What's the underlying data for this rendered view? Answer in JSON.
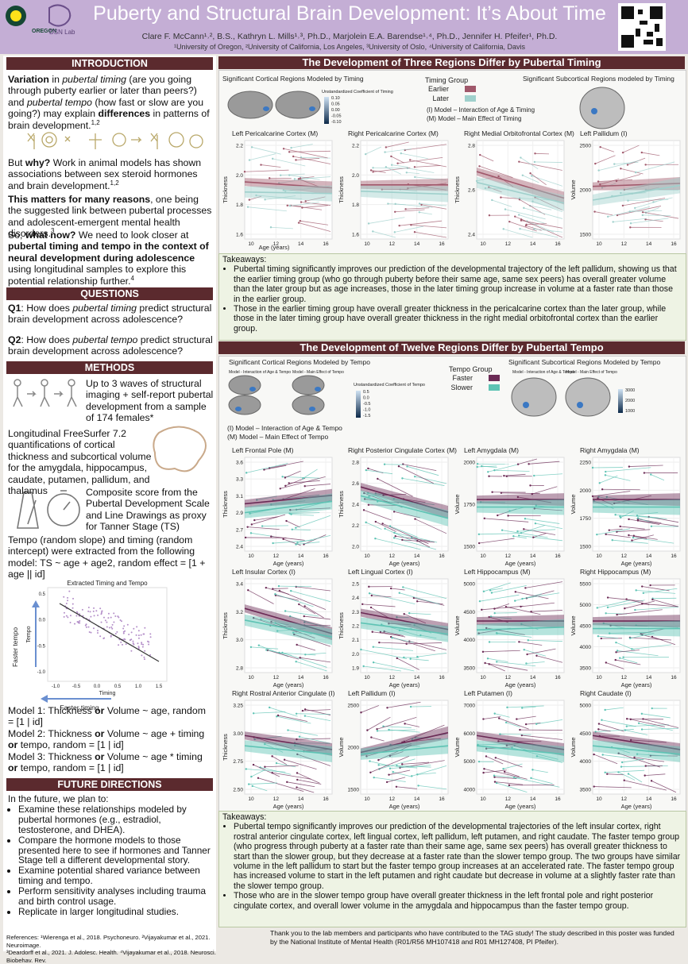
{
  "header": {
    "title": "Puberty and Structural Brain Development: It’s About Time",
    "authors": "Clare F. McCann¹˒², B.S., Kathryn L. Mills¹˒³, Ph.D., Marjolein E.A. Barendse¹˒⁴, Ph.D., Jennifer H. Pfeifer¹, Ph.D.",
    "affiliations": "¹University of Oregon, ²University of California, Los Angeles, ³University of Oslo, ⁴University of California, Davis",
    "logos": [
      "OREGON",
      "DSN Lab"
    ]
  },
  "intro": {
    "heading": "INTRODUCTION",
    "paragraphs": [
      [
        "Variation",
        " in ",
        "pubertal timing",
        " (are you going through puberty earlier or later than peers?) and ",
        "pubertal tempo",
        " (how fast or slow are you going?) may explain ",
        "differences",
        " in patterns of brain development.",
        "1,2"
      ],
      [
        "But ",
        "why?",
        " Work in animal models has shown associations between sex steroid hormones and brain development.",
        "1,2"
      ],
      [
        "This matters for many reasons",
        ", one being the suggested link between pubertal processes and adolescent-emergent mental health disorders.",
        "3"
      ],
      [
        "So, ",
        "what now?",
        " We need to look closer at ",
        "pubertal timing and tempo in the context of neural development during adolescence",
        " using longitudinal samples to explore this potential relationship further.",
        "4"
      ]
    ]
  },
  "questions": {
    "heading": "QUESTIONS",
    "q1": [
      "Q1",
      ": How does ",
      "pubertal timing",
      " predict structural brain development across adolescence?"
    ],
    "q2": [
      "Q2",
      ": How does ",
      "pubertal tempo",
      " predict structural brain development across adolescence?"
    ]
  },
  "methods": {
    "heading": "METHODS",
    "items": [
      "Up to 3 waves of structural imaging + self-report pubertal development from a sample of 174 females*",
      "Longitudinal FreeSurfer 7.2 quantifications of cortical thickness and subcortical volume for the amygdala, hippocampus, caudate, putamen, pallidum, and thalamus",
      "Composite score from the Pubertal Development Scale and Line Drawings as proxy for Tanner Stage (TS)",
      "Tempo (random slope) and timing (random intercept) were extracted from the following model: TS ~ age + age2, random effect = [1 + age || id]"
    ],
    "figure": {
      "title": "Extracted Timing and Tempo",
      "ylabel": "Tempo",
      "xlabel": "Timing",
      "yticks": [
        "-1.0",
        "-0.5",
        "0.0",
        "0.5"
      ],
      "xticks": [
        "-1.0",
        "-0.5",
        "0.0",
        "0.5",
        "1.0",
        "1.5"
      ],
      "y_arrow": "Faster tempo",
      "x_arrow": "Faster timing"
    },
    "models": [
      [
        "Model 1: Thickness ",
        "or",
        " Volume ~ age, random = [1 | id]"
      ],
      [
        "Model 2: Thickness ",
        "or",
        " Volume ~ age + timing ",
        "or",
        " tempo, random = [1 | id]"
      ],
      [
        "Model 3: Thickness ",
        "or",
        " Volume ~ age * timing ",
        "or",
        " tempo, random = [1 | id]"
      ]
    ]
  },
  "future": {
    "heading": "FUTURE DIRECTIONS",
    "intro": "In the future, we plan to:",
    "items": [
      "Examine these relationships modeled by pubertal hormones (e.g., estradiol, testosterone, and DHEA).",
      "Compare the hormone models to those presented here to see if hormones and Tanner Stage tell a different developmental story.",
      "Examine potential shared variance between timing and tempo.",
      "Perform sensitivity analyses including trauma and birth control usage.",
      "Replicate in larger longitudinal studies."
    ]
  },
  "references": [
    "References: ¹Wierenga et al., 2018. Psychoneuro. ²Vijayakumar et al., 2021. Neuroimage.",
    "³Deardorff et al., 2021. J. Adolesc. Health. ⁴Vijayakumar et al., 2018. Neurosci. Biobehav. Rev."
  ],
  "sections": [
    {
      "heading": "The Development of Three Regions Differ by Pubertal Timing",
      "cortical_title": "Significant Cortical Regions Modeled by Timing",
      "colorbar_title": "Unstandardized Coefficient of Timing",
      "colorbar_ticks": [
        "0.10",
        "0.05",
        "0.00",
        "-0.05",
        "-0.10"
      ],
      "group_title": "Timing Group",
      "groups": [
        {
          "name": "Earlier",
          "color": "#a0586b"
        },
        {
          "name": "Later",
          "color": "#9fd0cc"
        }
      ],
      "model_notes": [
        "(I) Model – Interaction of Age & Timing",
        "(M) Model – Main Effect of Timing"
      ],
      "subcortical_title": "Significant Subcortical Regions modeled by Timing",
      "xlabel": "Age (years)",
      "panels": [
        {
          "title": "Left Pericalcarine Cortex (M)",
          "ylabel": "Thickness",
          "yticks": [
            "1.6",
            "1.8",
            "2.0",
            "2.2"
          ],
          "xticks": [
            "10",
            "12",
            "14",
            "16"
          ]
        },
        {
          "title": "Right Pericalcarine Cortex (M)",
          "ylabel": "Thickness",
          "yticks": [
            "1.6",
            "1.8",
            "2.0",
            "2.2"
          ],
          "xticks": [
            "10",
            "12",
            "14",
            "16"
          ]
        },
        {
          "title": "Right Medial Orbitofrontal Cortex (M)",
          "ylabel": "Thickness",
          "yticks": [
            "2.4",
            "2.6",
            "2.8"
          ],
          "xticks": [
            "10",
            "12",
            "14",
            "16"
          ]
        },
        {
          "title": "Left Pallidum (I)",
          "ylabel": "Volume",
          "yticks": [
            "1500",
            "2000",
            "2500"
          ],
          "xticks": [
            "10",
            "12",
            "14",
            "16"
          ]
        }
      ],
      "takeaways_title": "Takeaways:",
      "takeaways": [
        "Pubertal timing significantly improves our prediction of the developmental trajectory of the left pallidum, showing us that the earlier timing group (who go through puberty before their same age, same sex peers) has overall greater volume than the later group but as age increases, those in the later timing group increase in volume at a faster rate than those in the earlier group.",
        "Those in the earlier timing group have overall greater thickness in the pericalcarine cortex than the later group, while those in the later timing group have overall greater thickness in the right medial orbitofrontal cortex than the earlier group."
      ]
    },
    {
      "heading": "The Development of Twelve Regions Differ by Pubertal Tempo",
      "cortical_title": "Significant Cortical Regions Modeled by Tempo",
      "map_labels": [
        "Model - Interaction of Age & Tempo",
        "Model - Main Effect of Tempo"
      ],
      "colorbar_title": "Unstandardized Coefficient of Tempo",
      "colorbar_ticks": [
        "0.5",
        "0.0",
        "-0.5",
        "-1.0",
        "-1.5"
      ],
      "group_title": "Tempo Group",
      "groups": [
        {
          "name": "Faster",
          "color": "#6b2a55"
        },
        {
          "name": "Slower",
          "color": "#5ec3b4"
        }
      ],
      "model_notes": [
        "(I) Model – Interaction of Age & Tempo",
        "(M) Model – Main Effect of Tempo"
      ],
      "subcortical_title": "Significant Subcortical Regions Modeled by Tempo",
      "subcortical_ticks": [
        "3000",
        "2000",
        "1000"
      ],
      "xlabel": "Age (years)",
      "panels": [
        {
          "title": "Left Frontal Pole (M)",
          "ylabel": "Thickness",
          "yticks": [
            "2.4",
            "2.7",
            "2.9",
            "3.1",
            "3.3",
            "3.6"
          ],
          "xticks": [
            "10",
            "12",
            "14",
            "16"
          ]
        },
        {
          "title": "Right Posterior Cingulate Cortex (M)",
          "ylabel": "Thickness",
          "yticks": [
            "2.0",
            "2.2",
            "2.4",
            "2.6",
            "2.8"
          ],
          "xticks": [
            "10",
            "12",
            "14",
            "16"
          ]
        },
        {
          "title": "Left Amygdala (M)",
          "ylabel": "Volume",
          "yticks": [
            "1500",
            "1750",
            "2000"
          ],
          "xticks": [
            "10",
            "12",
            "14",
            "16"
          ]
        },
        {
          "title": "Right Amygdala (M)",
          "ylabel": "Volume",
          "yticks": [
            "1500",
            "1750",
            "2000",
            "2250"
          ],
          "xticks": [
            "10",
            "12",
            "14",
            "16"
          ]
        },
        {
          "title": "Left Insular Cortex (I)",
          "ylabel": "Thickness",
          "yticks": [
            "2.8",
            "3.0",
            "3.2",
            "3.4"
          ],
          "xticks": [
            "10",
            "12",
            "14",
            "16"
          ]
        },
        {
          "title": "Left Lingual Cortex (I)",
          "ylabel": "Thickness",
          "yticks": [
            "1.9",
            "2.0",
            "2.1",
            "2.2",
            "2.3",
            "2.4",
            "2.5"
          ],
          "xticks": [
            "10",
            "12",
            "14",
            "16"
          ]
        },
        {
          "title": "Left Hippocampus (M)",
          "ylabel": "Volume",
          "yticks": [
            "3500",
            "4000",
            "4500",
            "5000"
          ],
          "xticks": [
            "10",
            "12",
            "14",
            "16"
          ]
        },
        {
          "title": "Right Hippocampus (M)",
          "ylabel": "Volume",
          "yticks": [
            "3500",
            "4000",
            "4500",
            "5000",
            "5500"
          ],
          "xticks": [
            "10",
            "12",
            "14",
            "16"
          ]
        },
        {
          "title": "Right Rostral Anterior Cingulate (I)",
          "ylabel": "Thickness",
          "yticks": [
            "2.50",
            "2.75",
            "3.00",
            "3.25"
          ],
          "xticks": [
            "10",
            "12",
            "14",
            "16"
          ]
        },
        {
          "title": "Left Pallidum (I)",
          "ylabel": "Volume",
          "yticks": [
            "1500",
            "2000",
            "2500"
          ],
          "xticks": [
            "10",
            "12",
            "14",
            "16"
          ]
        },
        {
          "title": "Left Putamen (I)",
          "ylabel": "Volume",
          "yticks": [
            "4000",
            "5000",
            "6000",
            "7000"
          ],
          "xticks": [
            "10",
            "12",
            "14",
            "16"
          ]
        },
        {
          "title": "Right Caudate (I)",
          "ylabel": "Volume",
          "yticks": [
            "3500",
            "4000",
            "4500",
            "5000"
          ],
          "xticks": [
            "10",
            "12",
            "14",
            "16"
          ]
        }
      ],
      "takeaways_title": "Takeaways:",
      "takeaways": [
        "Pubertal tempo significantly improves our prediction of the developmental trajectories of the left insular cortex, right rostral anterior cingulate cortex, left lingual cortex, left pallidum, left putamen, and right caudate. The faster tempo group (who progress through puberty at a faster rate than their same age, same sex peers) has overall greater thickness to start than the slower group, but they decrease at a faster rate than the slower tempo group. The two groups have similar volume in the left pallidum to start but the faster tempo group increases at an accelerated rate. The faster tempo group has increased volume to start in the left putamen and right caudate but decrease in volume at a slightly faster rate than the slower tempo group.",
        "Those who are in the slower tempo group have overall greater thickness in the left frontal pole and right posterior cingulate cortex, and overall lower volume in the amygdala and hippocampus than the faster tempo group."
      ]
    }
  ],
  "acknowledgment": "Thank you to the lab members and participants who have contributed to the TAG study! The study described in this poster was funded by the National Institute of Mental Health (R01/R56 MH107418 and R01 MH127408, PI Pfeifer)."
}
